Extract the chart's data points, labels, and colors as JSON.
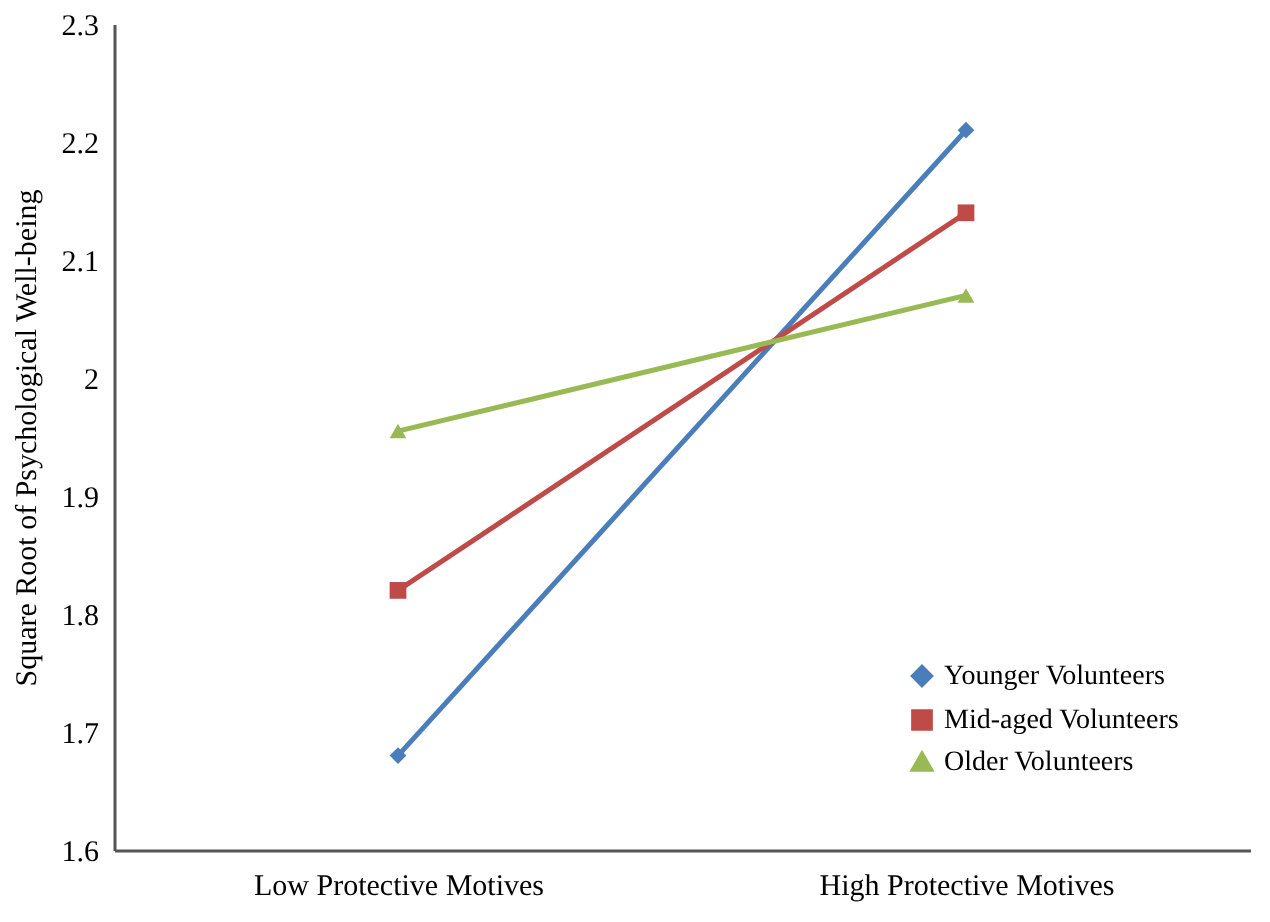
{
  "chart_data": {
    "type": "line",
    "ylabel": "Square Root of Psychological Well-being",
    "categories": [
      "Low Protective Motives",
      "High Protective Motives"
    ],
    "series": [
      {
        "name": "Younger Volunteers",
        "color": "#4a7ebb",
        "marker": "diamond",
        "values": [
          1.68,
          2.21
        ]
      },
      {
        "name": "Mid-aged Volunteers",
        "color": "#be4b48",
        "marker": "square",
        "values": [
          1.82,
          2.14
        ]
      },
      {
        "name": "Older Volunteers",
        "color": "#98b954",
        "marker": "triangle",
        "values": [
          1.955,
          2.07
        ]
      }
    ],
    "ylim": [
      1.6,
      2.3
    ],
    "yticks": [
      1.6,
      1.7,
      1.8,
      1.9,
      2,
      2.1,
      2.2,
      2.3
    ],
    "grid": false,
    "legend": "bottom right",
    "line_style": "solid"
  }
}
